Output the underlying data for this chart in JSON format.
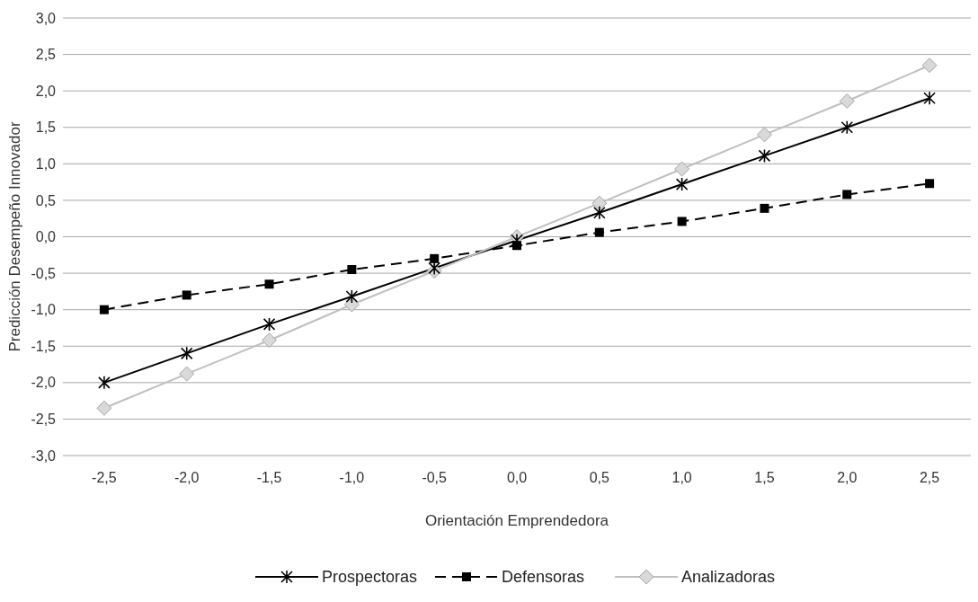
{
  "chart_data": {
    "type": "line",
    "xlabel": "Orientación Emprendedora",
    "ylabel": "Predicción Desempeño Innovador",
    "categories": [
      "-2,5",
      "-2,0",
      "-1,5",
      "-1,0",
      "-0,5",
      "0,0",
      "0,5",
      "1,0",
      "1,5",
      "2,0",
      "2,5"
    ],
    "ylim": [
      -3,
      3
    ],
    "yticks": [
      {
        "value": -3,
        "label": "-3,0"
      },
      {
        "value": -2.5,
        "label": "-2,5"
      },
      {
        "value": -2,
        "label": "-2,0"
      },
      {
        "value": -1.5,
        "label": "-1,5"
      },
      {
        "value": -1,
        "label": "-1,0"
      },
      {
        "value": -0.5,
        "label": "-0,5"
      },
      {
        "value": 0,
        "label": "0,0"
      },
      {
        "value": 0.5,
        "label": "0,5"
      },
      {
        "value": 1,
        "label": "1,0"
      },
      {
        "value": 1.5,
        "label": "1,5"
      },
      {
        "value": 2,
        "label": "2,0"
      },
      {
        "value": 2.5,
        "label": "2,5"
      },
      {
        "value": 3,
        "label": "3,0"
      }
    ],
    "grid": "y",
    "legend": "bottom",
    "series": [
      {
        "name": "Prospectoras",
        "color": "#000000",
        "marker": "cross",
        "line_style": "solid",
        "values": [
          -2.0,
          -1.6,
          -1.2,
          -0.82,
          -0.43,
          -0.05,
          0.33,
          0.72,
          1.11,
          1.5,
          1.9
        ]
      },
      {
        "name": "Defensoras",
        "color": "#000000",
        "marker": "square",
        "line_style": "dashed",
        "values": [
          -1.0,
          -0.8,
          -0.65,
          -0.45,
          -0.3,
          -0.12,
          0.06,
          0.21,
          0.39,
          0.58,
          0.73
        ]
      },
      {
        "name": "Analizadoras",
        "color": "#bfbfbf",
        "marker": "diamond",
        "line_style": "solid",
        "values": [
          -2.35,
          -1.88,
          -1.42,
          -0.93,
          -0.47,
          0.0,
          0.46,
          0.93,
          1.4,
          1.86,
          2.35
        ]
      }
    ]
  }
}
